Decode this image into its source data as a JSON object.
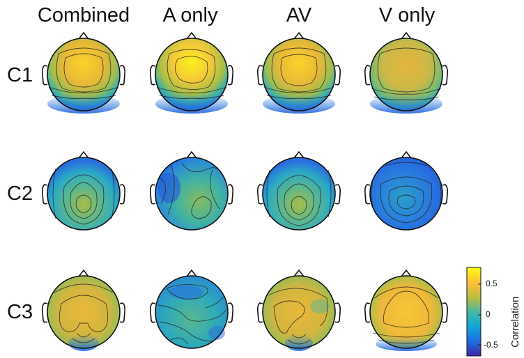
{
  "columns": [
    "Combined",
    "A only",
    "AV",
    "V only"
  ],
  "rows": [
    "C1",
    "C2",
    "C3"
  ],
  "colorbar": {
    "label": "Correlation",
    "ticks": [
      "0.5",
      "0",
      "-0.5"
    ],
    "colors": [
      "#f9fb0e",
      "#fdbe3d",
      "#b4bd40",
      "#48b7a4",
      "#13a9d1",
      "#1a73e3",
      "#3e26a8"
    ]
  },
  "topomaps": {
    "C1": [
      "frontal-positive",
      "frontal-positive-strong",
      "frontal-positive",
      "frontal-positive-weak"
    ],
    "C2": [
      "central-positive",
      "mixed",
      "central-positive",
      "negative"
    ],
    "C3": [
      "broad-positive",
      "mixed-negative",
      "broad-positive",
      "broad-positive-strong"
    ]
  }
}
